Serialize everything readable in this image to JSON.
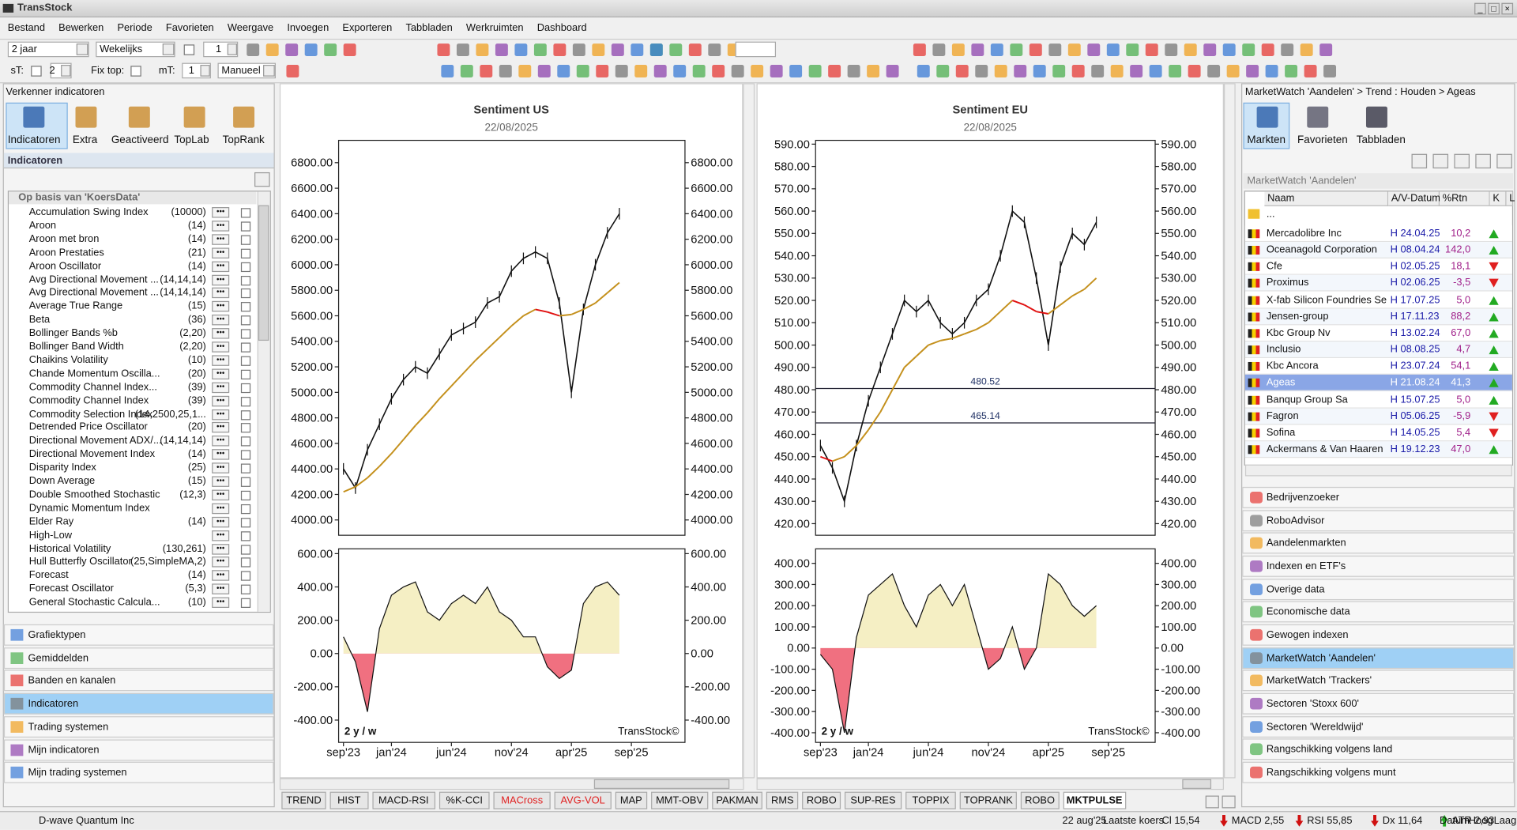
{
  "app": {
    "title": "TransStock",
    "menu": [
      "Bestand",
      "Bewerken",
      "Periode",
      "Favorieten",
      "Weergave",
      "Invoegen",
      "Exporteren",
      "Tabbladen",
      "Werkruimten",
      "Dashboard"
    ]
  },
  "toolbar": {
    "period": "2 jaar",
    "interval": "Wekelijks",
    "count": "1",
    "st_label": "sT:",
    "st_value": "2",
    "fix_label": "Fix top:",
    "mt_label": "mT:",
    "mt_value": "1",
    "mode": "Manueel"
  },
  "left_panel": {
    "title": "Verkenner indicatoren",
    "tabs": [
      "Indicatoren",
      "Extra",
      "Geactiveerd",
      "TopLab",
      "TopRank"
    ],
    "section": "Indicatoren",
    "group": "Op basis van 'KoersData'",
    "items": [
      {
        "name": "Accumulation Swing Index",
        "params": "(10000)"
      },
      {
        "name": "Aroon",
        "params": "(14)"
      },
      {
        "name": "Aroon met bron",
        "params": "(14)"
      },
      {
        "name": "Aroon Prestaties",
        "params": "(21)"
      },
      {
        "name": "Aroon Oscillator",
        "params": "(14)"
      },
      {
        "name": "Avg Directional Movement ...",
        "params": "(14,14,14)"
      },
      {
        "name": "Avg Directional Movement ...",
        "params": "(14,14,14)"
      },
      {
        "name": "Average True Range",
        "params": "(15)"
      },
      {
        "name": "Beta",
        "params": "(36)"
      },
      {
        "name": "Bollinger Bands %b",
        "params": "(2,20)"
      },
      {
        "name": "Bollinger Band Width",
        "params": "(2,20)"
      },
      {
        "name": "Chaikins Volatility",
        "params": "(10)"
      },
      {
        "name": "Chande Momentum Oscilla...",
        "params": "(20)"
      },
      {
        "name": "Commodity Channel Index...",
        "params": "(39)"
      },
      {
        "name": "Commodity Channel Index",
        "params": "(39)"
      },
      {
        "name": "Commodity Selection Index",
        "params": "(14,2500,25,1..."
      },
      {
        "name": "Detrended Price Oscillator",
        "params": "(20)"
      },
      {
        "name": "Directional Movement ADX/...",
        "params": "(14,14,14)"
      },
      {
        "name": "Directional Movement Index",
        "params": "(14)"
      },
      {
        "name": "Disparity Index",
        "params": "(25)"
      },
      {
        "name": "Down Average",
        "params": "(15)"
      },
      {
        "name": "Double Smoothed Stochastic",
        "params": "(12,3)"
      },
      {
        "name": "Dynamic Momentum Index"
      },
      {
        "name": "Elder Ray",
        "params": "(14)"
      },
      {
        "name": "High-Low"
      },
      {
        "name": "Historical Volatility",
        "params": "(130,261)"
      },
      {
        "name": "Hull Butterfly Oscillator",
        "params": "(25,SimpleMA,2)"
      },
      {
        "name": "Forecast",
        "params": "(14)"
      },
      {
        "name": "Forecast Oscillator",
        "params": "(5,3)"
      },
      {
        "name": "General Stochastic Calcula...",
        "params": "(10)"
      }
    ],
    "categories": [
      "Grafiektypen",
      "Gemiddelden",
      "Banden en kanalen",
      "Indicatoren",
      "Trading systemen",
      "Mijn indicatoren",
      "Mijn trading systemen"
    ],
    "selected": "Indicatoren"
  },
  "charts": [
    {
      "title": "Sentiment  US",
      "date": "22/08/2025",
      "xlabels": [
        "sep'23",
        "jan'24",
        "jun'24",
        "nov'24",
        "apr'25",
        "sep'25"
      ],
      "badge": "2 y / w",
      "brand": "TransStock©",
      "price": {
        "ylim": [
          3880,
          6975
        ],
        "yticks": [
          {
            "value": 6800,
            "label": "6800.00"
          },
          {
            "value": 6600,
            "label": "6600.00"
          },
          {
            "value": 6400,
            "label": "6400.00"
          },
          {
            "value": 6200,
            "label": "6200.00"
          },
          {
            "value": 6000,
            "label": "6000.00"
          },
          {
            "value": 5800,
            "label": "5800.00"
          },
          {
            "value": 5600,
            "label": "5600.00"
          },
          {
            "value": 5400,
            "label": "5400.00"
          },
          {
            "value": 5200,
            "label": "5200.00"
          },
          {
            "value": 5000,
            "label": "5000.00"
          },
          {
            "value": 4800,
            "label": "4800.00"
          },
          {
            "value": 4600,
            "label": "4600.00"
          },
          {
            "value": 4400,
            "label": "4400.00"
          },
          {
            "value": 4200,
            "label": "4200.00"
          },
          {
            "value": 4000,
            "label": "4000.00"
          }
        ],
        "close": [
          4400,
          4250,
          4550,
          4750,
          4950,
          5100,
          5200,
          5150,
          5300,
          5450,
          5500,
          5550,
          5700,
          5750,
          5950,
          6050,
          6100,
          6050,
          5700,
          5000,
          5650,
          6000,
          6250,
          6400
        ],
        "ma": [
          4220,
          4260,
          4330,
          4420,
          4520,
          4630,
          4740,
          4840,
          4950,
          5050,
          5150,
          5250,
          5340,
          5430,
          5520,
          5600,
          5650,
          5630,
          5600,
          5610,
          5650,
          5700,
          5780,
          5860
        ],
        "hlines": []
      },
      "oscillator": {
        "ylim": [
          -534,
          629
        ],
        "yticks": [
          {
            "value": 600,
            "label": "600.00"
          },
          {
            "value": 400,
            "label": "400.00"
          },
          {
            "value": 200,
            "label": "200.00"
          },
          {
            "value": 0,
            "label": "0.00"
          },
          {
            "value": -200,
            "label": "-200.00"
          },
          {
            "value": -400,
            "label": "-400.00"
          }
        ],
        "values": [
          100,
          -50,
          -350,
          150,
          350,
          400,
          430,
          250,
          200,
          300,
          350,
          300,
          400,
          250,
          200,
          100,
          100,
          -80,
          -150,
          -100,
          300,
          400,
          430,
          350
        ]
      }
    },
    {
      "title": "Sentiment EU",
      "date": "22/08/2025",
      "xlabels": [
        "sep'23",
        "jan'24",
        "jun'24",
        "nov'24",
        "apr'25",
        "sep'25"
      ],
      "badge": "2 y / w",
      "brand": "TransStock©",
      "price": {
        "ylim": [
          414.8,
          591.7
        ],
        "yticks": [
          {
            "value": 590,
            "label": "590.00"
          },
          {
            "value": 580,
            "label": "580.00"
          },
          {
            "value": 570,
            "label": "570.00"
          },
          {
            "value": 560,
            "label": "560.00"
          },
          {
            "value": 550,
            "label": "550.00"
          },
          {
            "value": 540,
            "label": "540.00"
          },
          {
            "value": 530,
            "label": "530.00"
          },
          {
            "value": 520,
            "label": "520.00"
          },
          {
            "value": 510,
            "label": "510.00"
          },
          {
            "value": 500,
            "label": "500.00"
          },
          {
            "value": 490,
            "label": "490.00"
          },
          {
            "value": 480,
            "label": "480.00"
          },
          {
            "value": 470,
            "label": "470.00"
          },
          {
            "value": 460,
            "label": "460.00"
          },
          {
            "value": 450,
            "label": "450.00"
          },
          {
            "value": 440,
            "label": "440.00"
          },
          {
            "value": 430,
            "label": "430.00"
          },
          {
            "value": 420,
            "label": "420.00"
          }
        ],
        "close": [
          455,
          445,
          430,
          455,
          475,
          490,
          505,
          520,
          515,
          520,
          510,
          505,
          510,
          520,
          525,
          540,
          560,
          555,
          530,
          500,
          535,
          550,
          545,
          555
        ],
        "ma": [
          450,
          448,
          450,
          455,
          462,
          470,
          480,
          490,
          495,
          500,
          502,
          503,
          505,
          507,
          510,
          515,
          520,
          518,
          515,
          514,
          518,
          522,
          525,
          530
        ],
        "hlines": [
          480.52,
          465.14
        ]
      },
      "oscillator": {
        "ylim": [
          -445.7,
          468.6
        ],
        "yticks": [
          {
            "value": 400,
            "label": "400.00"
          },
          {
            "value": 300,
            "label": "300.00"
          },
          {
            "value": 200,
            "label": "200.00"
          },
          {
            "value": 100,
            "label": "100.00"
          },
          {
            "value": 0,
            "label": "0.00"
          },
          {
            "value": -100,
            "label": "-100.00"
          },
          {
            "value": -200,
            "label": "-200.00"
          },
          {
            "value": -300,
            "label": "-300.00"
          },
          {
            "value": -400,
            "label": "-400.00"
          }
        ],
        "values": [
          -30,
          -100,
          -400,
          50,
          250,
          300,
          350,
          200,
          100,
          250,
          300,
          200,
          300,
          100,
          -100,
          -50,
          100,
          -100,
          0,
          350,
          300,
          200,
          150,
          200
        ]
      }
    }
  ],
  "right_panel": {
    "breadcrumb": "MarketWatch 'Aandelen' > Trend : Houden > Ageas",
    "tabs": [
      "Markten",
      "Favorieten",
      "Tabbladen"
    ],
    "list_title": "MarketWatch 'Aandelen'",
    "columns": [
      "Naam",
      "A/V-Datum",
      "%Rtn",
      "K",
      "L"
    ],
    "parent_row": "...",
    "rows": [
      {
        "name": "Mercadolibre Inc",
        "date": "H 24.04.25",
        "rtn": "10,2",
        "color": "#22aa22"
      },
      {
        "name": "Oceanagold Corporation",
        "date": "H 08.04.24",
        "rtn": "142,0",
        "color": "#22aa22"
      },
      {
        "name": "Cfe",
        "date": "H 02.05.25",
        "rtn": "18,1",
        "color": "#e02020"
      },
      {
        "name": "Proximus",
        "date": "H 02.06.25",
        "rtn": "-3,5",
        "color": "#e02020"
      },
      {
        "name": "X-fab Silicon Foundries Se",
        "date": "H 17.07.25",
        "rtn": "5,0",
        "color": "#22aa22"
      },
      {
        "name": "Jensen-group",
        "date": "H 17.11.23",
        "rtn": "88,2",
        "color": "#22aa22"
      },
      {
        "name": "Kbc Group Nv",
        "date": "H 13.02.24",
        "rtn": "67,0",
        "color": "#22aa22"
      },
      {
        "name": "Inclusio",
        "date": "H 08.08.25",
        "rtn": "4,7",
        "color": "#22aa22"
      },
      {
        "name": "Kbc Ancora",
        "date": "H 23.07.24",
        "rtn": "54,1",
        "color": "#22aa22"
      },
      {
        "name": "Ageas",
        "date": "H 21.08.24",
        "rtn": "41,3",
        "color": "#22aa22"
      },
      {
        "name": "Banqup Group Sa",
        "date": "H 15.07.25",
        "rtn": "5,0",
        "color": "#22aa22"
      },
      {
        "name": "Fagron",
        "date": "H 05.06.25",
        "rtn": "-5,9",
        "color": "#e02020"
      },
      {
        "name": "Sofina",
        "date": "H 14.05.25",
        "rtn": "5,4",
        "color": "#e02020"
      },
      {
        "name": "Ackermans & Van Haaren",
        "date": "H 19.12.23",
        "rtn": "47,0",
        "color": "#22aa22"
      }
    ],
    "selected_row": "Ageas",
    "links": [
      "Bedrijvenzoeker",
      "RoboAdvisor",
      "Aandelenmarkten",
      "Indexen en ETF's",
      "Overige data",
      "Economische data",
      "Gewogen indexen",
      "MarketWatch 'Aandelen'",
      "MarketWatch 'Trackers'",
      "Sectoren 'Stoxx 600'",
      "Sectoren 'Wereldwijd'",
      "Rangschikking volgens land",
      "Rangschikking volgens munt"
    ],
    "selected_link": "MarketWatch 'Aandelen'"
  },
  "tabs": [
    {
      "label": "TREND"
    },
    {
      "label": "HIST"
    },
    {
      "label": "MACD-RSI"
    },
    {
      "label": "%K-CCI"
    },
    {
      "label": "MACross",
      "color": "#e02020"
    },
    {
      "label": "AVG-VOL",
      "color": "#e02020"
    },
    {
      "label": "MAP"
    },
    {
      "label": "MMT-OBV"
    },
    {
      "label": "PAKMAN"
    },
    {
      "label": "RMS"
    },
    {
      "label": "ROBO"
    },
    {
      "label": "SUP-RES"
    },
    {
      "label": "TOPPIX"
    },
    {
      "label": "TOPRANK"
    },
    {
      "label": "ROBO"
    },
    {
      "label": "MKTPULSE"
    }
  ],
  "active_tab": "MKTPULSE",
  "status": {
    "company": "D-wave Quantum Inc",
    "date": "22 aug'25",
    "last": "Laatste koers",
    "items": [
      {
        "text": "Cl 15,54"
      },
      {
        "text": "MACD 2,55",
        "color": "#d01010"
      },
      {
        "text": "RSI 55,85",
        "color": "#d01010"
      },
      {
        "text": "Dx 11,64",
        "color": "#d01010"
      },
      {
        "text": "ATR 2,93",
        "color": "#22aa22"
      }
    ],
    "fields": [
      "Datum",
      "Hoog",
      "Laag"
    ]
  }
}
